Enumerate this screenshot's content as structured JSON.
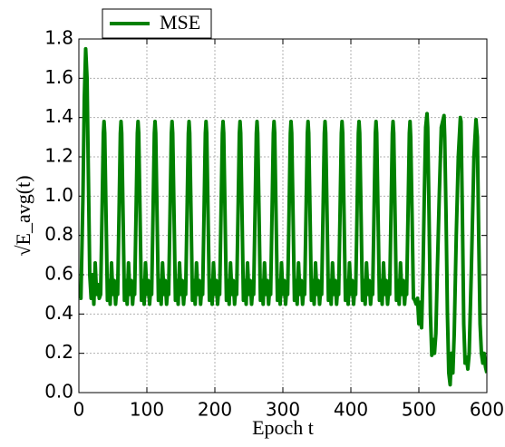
{
  "chart_data": {
    "type": "line",
    "x_label": "Epoch t",
    "y_label": "√E_avg(t)",
    "xlim": [
      0,
      600
    ],
    "xticks": [
      0,
      100,
      200,
      300,
      400,
      500,
      600
    ],
    "ylim": [
      0,
      1.8
    ],
    "yticks": [
      {
        "value": 0,
        "label": "0.0"
      },
      0.2,
      0.4,
      0.6,
      0.8,
      {
        "value": 1,
        "label": "1.0"
      },
      1.2,
      1.4,
      1.6,
      1.8
    ],
    "grid": true,
    "legend": "top-left",
    "x": [
      1,
      3,
      6,
      8,
      10,
      12,
      14,
      16,
      18,
      20,
      22,
      24,
      26,
      28,
      30,
      32,
      34,
      36,
      37,
      38,
      40,
      42,
      44,
      46,
      48,
      50,
      52,
      54,
      56,
      57,
      59,
      61,
      62,
      63,
      65,
      67,
      69,
      71,
      73,
      75,
      77,
      79,
      81,
      82,
      84,
      86,
      87,
      88,
      90,
      92,
      94,
      96,
      98,
      100,
      102,
      104,
      106,
      107,
      109,
      111,
      112,
      113,
      115,
      117,
      119,
      121,
      123,
      125,
      127,
      129,
      131,
      132,
      134,
      136,
      137,
      138,
      140,
      142,
      144,
      146,
      148,
      150,
      152,
      154,
      156,
      157,
      159,
      161,
      162,
      163,
      165,
      167,
      169,
      171,
      173,
      175,
      177,
      179,
      181,
      182,
      184,
      186,
      187,
      188,
      190,
      192,
      194,
      196,
      198,
      200,
      202,
      204,
      206,
      207,
      209,
      211,
      212,
      213,
      215,
      217,
      219,
      221,
      223,
      225,
      227,
      229,
      231,
      232,
      234,
      236,
      237,
      238,
      240,
      242,
      244,
      246,
      248,
      250,
      252,
      254,
      256,
      257,
      259,
      261,
      262,
      263,
      265,
      267,
      269,
      271,
      273,
      275,
      277,
      279,
      281,
      282,
      284,
      286,
      287,
      288,
      290,
      292,
      294,
      296,
      298,
      300,
      302,
      304,
      306,
      307,
      309,
      311,
      312,
      313,
      315,
      317,
      319,
      321,
      323,
      325,
      327,
      329,
      331,
      332,
      334,
      336,
      337,
      338,
      340,
      342,
      344,
      346,
      348,
      350,
      352,
      354,
      356,
      357,
      359,
      361,
      362,
      363,
      365,
      367,
      369,
      371,
      373,
      375,
      377,
      379,
      381,
      382,
      384,
      386,
      387,
      388,
      390,
      392,
      394,
      396,
      398,
      400,
      402,
      404,
      406,
      407,
      409,
      411,
      412,
      413,
      415,
      417,
      419,
      421,
      423,
      425,
      427,
      429,
      431,
      432,
      434,
      436,
      437,
      438,
      440,
      442,
      444,
      446,
      448,
      450,
      452,
      454,
      456,
      457,
      459,
      461,
      462,
      463,
      465,
      467,
      469,
      471,
      473,
      475,
      477,
      479,
      481,
      482,
      484,
      486,
      487,
      488,
      490,
      492,
      494,
      496,
      498,
      500,
      502,
      504,
      506,
      508,
      510,
      512,
      513,
      515,
      517,
      519,
      521,
      523,
      525,
      527,
      530,
      533,
      537,
      538,
      540,
      542,
      544,
      546,
      548,
      550,
      552,
      555,
      558,
      561,
      562,
      564,
      566,
      568,
      570,
      572,
      574,
      577,
      581,
      584,
      586,
      588,
      590,
      592,
      594,
      596,
      598,
      600
    ],
    "series": [
      {
        "name": "MSE",
        "color": "#008000",
        "values": [
          0.48,
          0.48,
          1.0,
          1.5,
          1.75,
          1.6,
          1.1,
          0.6,
          0.48,
          0.6,
          0.45,
          0.66,
          0.5,
          0.55,
          0.48,
          0.5,
          0.9,
          1.32,
          1.38,
          1.32,
          0.9,
          0.47,
          0.57,
          0.45,
          0.66,
          0.5,
          0.57,
          0.45,
          0.55,
          0.5,
          0.9,
          1.32,
          1.38,
          1.32,
          0.9,
          0.47,
          0.57,
          0.45,
          0.66,
          0.5,
          0.57,
          0.45,
          0.55,
          0.5,
          0.9,
          1.32,
          1.38,
          1.32,
          0.9,
          0.47,
          0.57,
          0.45,
          0.66,
          0.5,
          0.57,
          0.45,
          0.55,
          0.5,
          0.9,
          1.32,
          1.38,
          1.32,
          0.9,
          0.47,
          0.57,
          0.45,
          0.66,
          0.5,
          0.57,
          0.45,
          0.55,
          0.5,
          0.9,
          1.32,
          1.38,
          1.32,
          0.9,
          0.47,
          0.57,
          0.45,
          0.66,
          0.5,
          0.57,
          0.45,
          0.55,
          0.5,
          0.9,
          1.32,
          1.38,
          1.32,
          0.9,
          0.47,
          0.57,
          0.45,
          0.66,
          0.5,
          0.57,
          0.45,
          0.55,
          0.5,
          0.9,
          1.32,
          1.38,
          1.32,
          0.9,
          0.47,
          0.57,
          0.45,
          0.66,
          0.5,
          0.57,
          0.45,
          0.55,
          0.5,
          0.9,
          1.32,
          1.38,
          1.32,
          0.9,
          0.47,
          0.57,
          0.45,
          0.66,
          0.5,
          0.57,
          0.45,
          0.55,
          0.5,
          0.9,
          1.32,
          1.38,
          1.32,
          0.9,
          0.47,
          0.57,
          0.45,
          0.66,
          0.5,
          0.57,
          0.45,
          0.55,
          0.5,
          0.9,
          1.32,
          1.38,
          1.32,
          0.9,
          0.47,
          0.57,
          0.45,
          0.66,
          0.5,
          0.57,
          0.45,
          0.55,
          0.5,
          0.9,
          1.32,
          1.38,
          1.32,
          0.9,
          0.47,
          0.57,
          0.45,
          0.66,
          0.5,
          0.57,
          0.45,
          0.55,
          0.5,
          0.9,
          1.32,
          1.38,
          1.32,
          0.9,
          0.47,
          0.57,
          0.45,
          0.66,
          0.5,
          0.57,
          0.45,
          0.55,
          0.5,
          0.9,
          1.32,
          1.38,
          1.32,
          0.9,
          0.47,
          0.57,
          0.45,
          0.66,
          0.5,
          0.57,
          0.45,
          0.55,
          0.5,
          0.9,
          1.32,
          1.38,
          1.32,
          0.9,
          0.47,
          0.57,
          0.45,
          0.66,
          0.5,
          0.57,
          0.45,
          0.55,
          0.5,
          0.9,
          1.32,
          1.38,
          1.32,
          0.9,
          0.47,
          0.57,
          0.45,
          0.66,
          0.5,
          0.57,
          0.45,
          0.55,
          0.5,
          0.9,
          1.32,
          1.38,
          1.32,
          0.9,
          0.47,
          0.57,
          0.45,
          0.66,
          0.5,
          0.57,
          0.45,
          0.55,
          0.5,
          0.9,
          1.32,
          1.38,
          1.32,
          0.9,
          0.47,
          0.57,
          0.45,
          0.66,
          0.5,
          0.57,
          0.45,
          0.55,
          0.5,
          0.9,
          1.32,
          1.38,
          1.32,
          0.9,
          0.47,
          0.57,
          0.45,
          0.66,
          0.5,
          0.57,
          0.45,
          0.55,
          0.5,
          0.9,
          1.32,
          1.38,
          1.3,
          0.9,
          0.48,
          0.47,
          0.45,
          0.48,
          0.35,
          0.46,
          0.33,
          0.6,
          1.0,
          1.35,
          1.42,
          1.35,
          0.9,
          0.4,
          0.19,
          0.27,
          0.2,
          0.3,
          0.6,
          1.0,
          1.35,
          1.41,
          1.3,
          0.9,
          0.4,
          0.1,
          0.04,
          0.2,
          0.1,
          0.3,
          0.8,
          1.2,
          1.4,
          1.38,
          0.9,
          0.35,
          0.15,
          0.18,
          0.12,
          0.2,
          0.6,
          1.2,
          1.39,
          1.3,
          0.8,
          0.35,
          0.2,
          0.15,
          0.2,
          0.13,
          0.1
        ]
      }
    ]
  }
}
